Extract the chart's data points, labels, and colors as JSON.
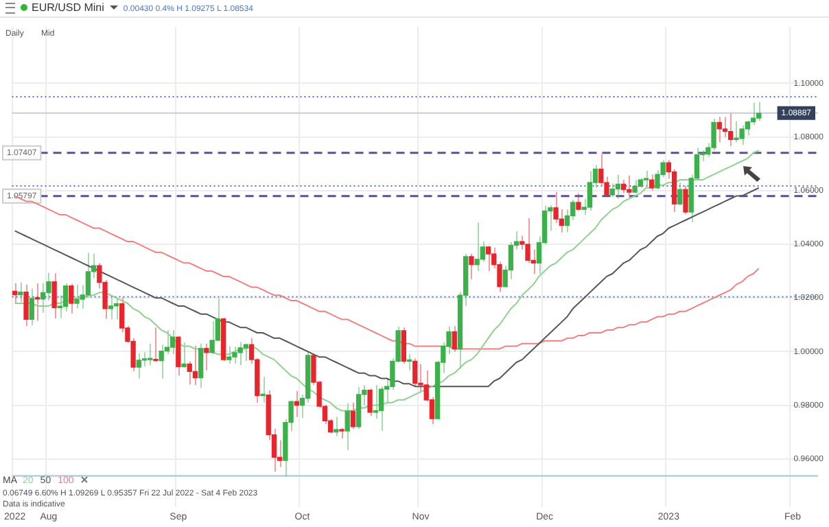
{
  "chart_data": {
    "type": "candlestick",
    "title": "EUR/USD Mini",
    "legend_title": "MA",
    "legend": "bottom left",
    "grid": true,
    "annotations": [
      "0.00430  0.4%  H 1.09275  L 1.08534",
      "Daily",
      "Mid",
      "0.06749  6.60%  H 1.09269  L 0.95357  Fri 22 Jul 2022 - Sat 4 Feb 2023",
      "Data is indicative"
    ],
    "ylim": [
      0.942,
      1.121
    ],
    "yticks": [
      {
        "value": 0.96,
        "label": "0.96000"
      },
      {
        "value": 0.98,
        "label": "0.98000"
      },
      {
        "value": 1.0,
        "label": "1.00000"
      },
      {
        "value": 1.02,
        "label": "1.02000"
      },
      {
        "value": 1.04,
        "label": "1.04000"
      },
      {
        "value": 1.06,
        "label": "1.06000"
      },
      {
        "value": 1.08,
        "label": "1.08000"
      },
      {
        "value": 1.1,
        "label": "1.10000"
      }
    ],
    "categories": [
      "2022",
      null,
      null,
      null,
      null,
      null,
      "Aug",
      null,
      null,
      null,
      null,
      null,
      null,
      null,
      null,
      null,
      null,
      null,
      null,
      null,
      null,
      null,
      null,
      null,
      null,
      null,
      null,
      null,
      null,
      "Sep",
      null,
      null,
      null,
      null,
      null,
      null,
      null,
      null,
      null,
      null,
      null,
      null,
      null,
      null,
      null,
      null,
      null,
      null,
      null,
      null,
      null,
      "Oct",
      null,
      null,
      null,
      null,
      null,
      null,
      null,
      null,
      null,
      null,
      null,
      null,
      null,
      null,
      null,
      null,
      null,
      null,
      null,
      null,
      "Nov",
      null,
      null,
      null,
      null,
      null,
      null,
      null,
      null,
      null,
      null,
      null,
      null,
      null,
      null,
      null,
      null,
      null,
      null,
      null,
      null,
      null,
      "Dec",
      null,
      null,
      null,
      null,
      null,
      null,
      null,
      null,
      null,
      null,
      null,
      null,
      null,
      null,
      null,
      null,
      null,
      null,
      null,
      null,
      null,
      "2023",
      null,
      null,
      null,
      null,
      null,
      null,
      null,
      null,
      null,
      null,
      null,
      null,
      null,
      null,
      null,
      null,
      null,
      null,
      null,
      null,
      null,
      "Feb",
      null,
      null,
      null,
      null
    ],
    "ohlc": [
      [
        1.0225,
        1.0255,
        1.018,
        1.0212
      ],
      [
        1.0212,
        1.0258,
        1.0185,
        1.0222
      ],
      [
        1.0222,
        1.025,
        1.0095,
        1.012
      ],
      [
        1.012,
        1.0235,
        1.0098,
        1.0198
      ],
      [
        1.0198,
        1.0254,
        1.0115,
        1.0196
      ],
      [
        1.0196,
        1.0255,
        1.0145,
        1.022
      ],
      [
        1.022,
        1.0294,
        1.019,
        1.026
      ],
      [
        1.026,
        1.0292,
        1.0123,
        1.0164
      ],
      [
        1.0164,
        1.021,
        1.0125,
        1.0168
      ],
      [
        1.0168,
        1.0254,
        1.015,
        1.0245
      ],
      [
        1.0245,
        1.0253,
        1.0142,
        1.018
      ],
      [
        1.018,
        1.025,
        1.016,
        1.0195
      ],
      [
        1.0195,
        1.0248,
        1.016,
        1.0211
      ],
      [
        1.0211,
        1.0368,
        1.0202,
        1.0298
      ],
      [
        1.0298,
        1.0364,
        1.0275,
        1.032
      ],
      [
        1.032,
        1.033,
        1.0235,
        1.0258
      ],
      [
        1.0258,
        1.0266,
        1.0122,
        1.016
      ],
      [
        1.016,
        1.02,
        1.012,
        1.017
      ],
      [
        1.017,
        1.02,
        1.012,
        1.0178
      ],
      [
        1.0178,
        1.0202,
        1.0072,
        1.0088
      ],
      [
        1.0088,
        1.0096,
        1.0032,
        1.0038
      ],
      [
        1.0038,
        1.005,
        0.9927,
        0.9942
      ],
      [
        0.9942,
        0.9994,
        0.99,
        0.9968
      ],
      [
        0.9968,
        0.9998,
        0.9945,
        0.997
      ],
      [
        0.997,
        1.003,
        0.995,
        0.997
      ],
      [
        0.997,
        1.009,
        0.9962,
        0.9966
      ],
      [
        0.9966,
        1.0026,
        0.99,
        1.0002
      ],
      [
        1.0002,
        1.008,
        0.999,
        1.0016
      ],
      [
        1.0016,
        1.008,
        0.999,
        1.0054
      ],
      [
        1.0054,
        1.0058,
        0.991,
        0.9944
      ],
      [
        0.9944,
        1.0034,
        0.994,
        0.9954
      ],
      [
        0.9954,
        0.9964,
        0.9877,
        0.9926
      ],
      [
        0.9926,
        1.0022,
        0.9875,
        0.9902
      ],
      [
        0.9902,
        1.003,
        0.9865,
        1.0012
      ],
      [
        1.0012,
        1.003,
        0.993,
        0.9996
      ],
      [
        0.9996,
        1.0112,
        0.999,
        1.0042
      ],
      [
        1.0042,
        1.0198,
        1.004,
        1.0122
      ],
      [
        1.0122,
        1.0126,
        0.9965,
        0.997
      ],
      [
        0.997,
        1.002,
        0.9955,
        0.998
      ],
      [
        0.998,
        1.0018,
        0.9955,
        0.9996
      ],
      [
        0.9996,
        1.0036,
        0.995,
        1.0014
      ],
      [
        1.0014,
        1.003,
        0.9965,
        1.0026
      ],
      [
        1.0026,
        1.005,
        0.9955,
        0.997
      ],
      [
        0.997,
        0.9976,
        0.981,
        0.9836
      ],
      [
        0.9836,
        0.9906,
        0.981,
        0.9838
      ],
      [
        0.9838,
        0.9855,
        0.967,
        0.969
      ],
      [
        0.969,
        0.9712,
        0.9553,
        0.9606
      ],
      [
        0.9606,
        0.967,
        0.957,
        0.9594
      ],
      [
        0.9594,
        0.9748,
        0.9536,
        0.9736
      ],
      [
        0.9736,
        0.9816,
        0.9703,
        0.9814
      ],
      [
        0.9814,
        0.9853,
        0.9756,
        0.98
      ],
      [
        0.98,
        0.984,
        0.9752,
        0.9826
      ],
      [
        0.9826,
        0.9999,
        0.981,
        0.9986
      ],
      [
        0.9986,
        0.9988,
        0.9876,
        0.9886
      ],
      [
        0.9886,
        0.989,
        0.979,
        0.9796
      ],
      [
        0.9796,
        0.9802,
        0.973,
        0.9742
      ],
      [
        0.9742,
        0.9748,
        0.9695,
        0.97
      ],
      [
        0.97,
        0.9757,
        0.9685,
        0.971
      ],
      [
        0.971,
        0.9716,
        0.9677,
        0.9704
      ],
      [
        0.9704,
        0.9808,
        0.9632,
        0.9778
      ],
      [
        0.9778,
        0.981,
        0.9712,
        0.972
      ],
      [
        0.972,
        0.9868,
        0.9712,
        0.984
      ],
      [
        0.984,
        0.9875,
        0.98,
        0.9856
      ],
      [
        0.9856,
        0.9862,
        0.976,
        0.9774
      ],
      [
        0.9774,
        0.9875,
        0.975,
        0.978
      ],
      [
        0.978,
        0.987,
        0.9705,
        0.986
      ],
      [
        0.986,
        0.99,
        0.981,
        0.987
      ],
      [
        0.987,
        0.9975,
        0.9858,
        0.9964
      ],
      [
        0.9964,
        1.0094,
        0.996,
        1.0078
      ],
      [
        1.0078,
        1.009,
        0.9955,
        0.9964
      ],
      [
        0.9964,
        0.999,
        0.993,
        0.9964
      ],
      [
        0.9964,
        0.9974,
        0.987,
        0.9882
      ],
      [
        0.9882,
        0.9953,
        0.9853,
        0.9876
      ],
      [
        0.9876,
        0.993,
        0.9814,
        0.982
      ],
      [
        0.982,
        0.983,
        0.973,
        0.975
      ],
      [
        0.975,
        0.9965,
        0.9745,
        0.996
      ],
      [
        0.996,
        1.0034,
        0.992,
        1.002
      ],
      [
        1.002,
        1.0094,
        0.999,
        1.0074
      ],
      [
        1.0074,
        1.0095,
        1.0,
        1.001
      ],
      [
        1.001,
        1.0222,
        0.9936,
        1.021
      ],
      [
        1.021,
        1.0365,
        1.017,
        1.0354
      ],
      [
        1.0354,
        1.0365,
        1.027,
        1.0324
      ],
      [
        1.0324,
        1.0481,
        1.03,
        1.0344
      ],
      [
        1.0344,
        1.041,
        1.0335,
        1.039
      ],
      [
        1.039,
        1.0394,
        1.03,
        1.0364
      ],
      [
        1.0364,
        1.0388,
        1.031,
        1.0324
      ],
      [
        1.0324,
        1.0335,
        1.0222,
        1.0242
      ],
      [
        1.0242,
        1.032,
        1.024,
        1.0304
      ],
      [
        1.0304,
        1.0408,
        1.027,
        1.0396
      ],
      [
        1.0396,
        1.0448,
        1.038,
        1.041
      ],
      [
        1.041,
        1.0432,
        1.038,
        1.04
      ],
      [
        1.04,
        1.0497,
        1.033,
        1.034
      ],
      [
        1.034,
        1.038,
        1.029,
        1.033
      ],
      [
        1.033,
        1.0429,
        1.029,
        1.0406
      ],
      [
        1.0406,
        1.0544,
        1.04,
        1.0524
      ],
      [
        1.0524,
        1.0545,
        1.045,
        1.0536
      ],
      [
        1.0536,
        1.0595,
        1.048,
        1.0494
      ],
      [
        1.0494,
        1.053,
        1.0444,
        1.047
      ],
      [
        1.047,
        1.053,
        1.0445,
        1.0506
      ],
      [
        1.0506,
        1.0566,
        1.049,
        1.0556
      ],
      [
        1.0556,
        1.059,
        1.0525,
        1.053
      ],
      [
        1.053,
        1.057,
        1.051,
        1.0538
      ],
      [
        1.0538,
        1.0673,
        1.0525,
        1.063
      ],
      [
        1.063,
        1.0695,
        1.061,
        1.068
      ],
      [
        1.068,
        1.0736,
        1.062,
        1.063
      ],
      [
        1.063,
        1.0652,
        1.058,
        1.0584
      ],
      [
        1.0584,
        1.0626,
        1.0575,
        1.0606
      ],
      [
        1.0606,
        1.0658,
        1.057,
        1.0624
      ],
      [
        1.0624,
        1.064,
        1.059,
        1.0604
      ],
      [
        1.0604,
        1.0656,
        1.0575,
        1.0594
      ],
      [
        1.0594,
        1.064,
        1.059,
        1.0616
      ],
      [
        1.0616,
        1.0646,
        1.061,
        1.064
      ],
      [
        1.064,
        1.0674,
        1.062,
        1.064
      ],
      [
        1.064,
        1.066,
        1.06,
        1.061
      ],
      [
        1.061,
        1.0676,
        1.0605,
        1.066
      ],
      [
        1.066,
        1.0714,
        1.065,
        1.0704
      ],
      [
        1.0704,
        1.0714,
        1.0645,
        1.067
      ],
      [
        1.067,
        1.068,
        1.052,
        1.055
      ],
      [
        1.055,
        1.063,
        1.0545,
        1.0604
      ],
      [
        1.0604,
        1.0618,
        1.0512,
        1.052
      ],
      [
        1.052,
        1.066,
        1.0483,
        1.0646
      ],
      [
        1.0646,
        1.076,
        1.064,
        1.0734
      ],
      [
        1.0734,
        1.075,
        1.071,
        1.0736
      ],
      [
        1.0736,
        1.0777,
        1.0725,
        1.076
      ],
      [
        1.076,
        1.0868,
        1.075,
        1.0854
      ],
      [
        1.0854,
        1.0875,
        1.078,
        1.083
      ],
      [
        1.083,
        1.0874,
        1.08,
        1.082
      ],
      [
        1.082,
        1.0887,
        1.0766,
        1.079
      ],
      [
        1.079,
        1.0858,
        1.078,
        1.0794
      ],
      [
        1.0794,
        1.0843,
        1.077,
        1.083
      ],
      [
        1.083,
        1.086,
        1.0805,
        1.0856
      ],
      [
        1.0856,
        1.0927,
        1.0845,
        1.087
      ],
      [
        1.087,
        1.093,
        1.086,
        1.0888
      ],
      null,
      null,
      null,
      null,
      null,
      null,
      null,
      null,
      null,
      null
    ],
    "series": [
      {
        "name": "20",
        "type": "line",
        "color": "#8fd18f",
        "values": [
          1.018,
          1.018,
          1.018,
          1.018,
          1.017,
          1.017,
          1.017,
          1.018,
          1.018,
          1.019,
          1.019,
          1.02,
          1.02,
          1.021,
          1.021,
          1.022,
          1.022,
          1.021,
          1.02,
          1.019,
          1.018,
          1.016,
          1.015,
          1.013,
          1.012,
          1.01,
          1.008,
          1.007,
          1.005,
          1.003,
          1.002,
          1.002,
          1.001,
          1.001,
          1.0,
          1.0,
          0.999,
          0.999,
          0.999,
          1.0,
          1.001,
          1.001,
          1.002,
          1.001,
          0.999,
          0.998,
          0.997,
          0.995,
          0.993,
          0.991,
          0.99,
          0.988,
          0.986,
          0.985,
          0.983,
          0.982,
          0.981,
          0.979,
          0.978,
          0.978,
          0.978,
          0.979,
          0.979,
          0.98,
          0.98,
          0.98,
          0.981,
          0.981,
          0.982,
          0.982,
          0.983,
          0.984,
          0.985,
          0.986,
          0.987,
          0.988,
          0.989,
          0.991,
          0.992,
          0.994,
          0.996,
          0.997,
          0.999,
          1.002,
          1.005,
          1.008,
          1.01,
          1.013,
          1.016,
          1.018,
          1.021,
          1.023,
          1.025,
          1.028,
          1.03,
          1.032,
          1.033,
          1.035,
          1.037,
          1.038,
          1.04,
          1.042,
          1.044,
          1.046,
          1.049,
          1.051,
          1.053,
          1.054,
          1.056,
          1.057,
          1.058,
          1.059,
          1.061,
          1.061,
          1.062,
          1.062,
          1.063,
          1.063,
          1.064,
          1.064,
          1.064,
          1.064,
          1.064,
          1.065,
          1.066,
          1.067,
          1.068,
          1.069,
          1.07,
          1.071,
          1.072,
          1.074,
          1.075,
          null,
          null,
          null,
          null,
          null,
          null,
          null,
          null,
          null,
          null
        ]
      },
      {
        "name": "50",
        "type": "line",
        "color": "#555555",
        "values": [
          1.045,
          1.044,
          1.043,
          1.042,
          1.041,
          1.04,
          1.039,
          1.038,
          1.037,
          1.036,
          1.035,
          1.034,
          1.033,
          1.032,
          1.031,
          1.03,
          1.029,
          1.028,
          1.027,
          1.026,
          1.025,
          1.024,
          1.023,
          1.022,
          1.021,
          1.02,
          1.02,
          1.019,
          1.018,
          1.017,
          1.017,
          1.016,
          1.015,
          1.014,
          1.014,
          1.013,
          1.012,
          1.011,
          1.011,
          1.01,
          1.009,
          1.009,
          1.008,
          1.007,
          1.007,
          1.006,
          1.005,
          1.005,
          1.004,
          1.003,
          1.002,
          1.001,
          1.0,
          0.999,
          0.998,
          0.998,
          0.997,
          0.996,
          0.995,
          0.994,
          0.993,
          0.992,
          0.992,
          0.991,
          0.991,
          0.99,
          0.99,
          0.989,
          0.989,
          0.988,
          0.988,
          0.987,
          0.987,
          0.987,
          0.987,
          0.987,
          0.987,
          0.987,
          0.987,
          0.987,
          0.987,
          0.987,
          0.987,
          0.987,
          0.987,
          0.989,
          0.99,
          0.992,
          0.994,
          0.996,
          0.997,
          0.999,
          1.001,
          1.003,
          1.005,
          1.007,
          1.009,
          1.011,
          1.013,
          1.016,
          1.018,
          1.02,
          1.022,
          1.024,
          1.026,
          1.028,
          1.029,
          1.031,
          1.033,
          1.034,
          1.036,
          1.038,
          1.039,
          1.041,
          1.043,
          1.044,
          1.046,
          1.047,
          1.048,
          1.049,
          1.05,
          1.051,
          1.052,
          1.053,
          1.054,
          1.055,
          1.056,
          1.057,
          1.058,
          1.058,
          1.059,
          1.06,
          1.061,
          null,
          null,
          null,
          null,
          null,
          null,
          null,
          null,
          null,
          null
        ]
      },
      {
        "name": "100",
        "type": "line",
        "color": "#f08080",
        "values": [
          1.058,
          1.057,
          1.056,
          1.056,
          1.055,
          1.054,
          1.053,
          1.052,
          1.051,
          1.051,
          1.05,
          1.049,
          1.048,
          1.047,
          1.046,
          1.046,
          1.045,
          1.044,
          1.043,
          1.042,
          1.041,
          1.041,
          1.04,
          1.039,
          1.038,
          1.037,
          1.037,
          1.036,
          1.035,
          1.034,
          1.033,
          1.033,
          1.032,
          1.031,
          1.03,
          1.03,
          1.029,
          1.028,
          1.028,
          1.027,
          1.026,
          1.025,
          1.024,
          1.024,
          1.023,
          1.022,
          1.021,
          1.021,
          1.02,
          1.019,
          1.019,
          1.018,
          1.017,
          1.016,
          1.015,
          1.015,
          1.014,
          1.013,
          1.012,
          1.012,
          1.011,
          1.01,
          1.009,
          1.008,
          1.007,
          1.006,
          1.005,
          1.004,
          1.004,
          1.003,
          1.003,
          1.002,
          1.002,
          1.002,
          1.002,
          1.002,
          1.002,
          1.002,
          1.001,
          1.001,
          1.001,
          1.001,
          1.001,
          1.001,
          1.001,
          1.001,
          1.001,
          1.002,
          1.002,
          1.002,
          1.003,
          1.003,
          1.003,
          1.003,
          1.004,
          1.004,
          1.004,
          1.004,
          1.005,
          1.005,
          1.006,
          1.006,
          1.007,
          1.007,
          1.007,
          1.008,
          1.008,
          1.009,
          1.009,
          1.01,
          1.01,
          1.011,
          1.011,
          1.012,
          1.013,
          1.013,
          1.014,
          1.014,
          1.015,
          1.015,
          1.016,
          1.017,
          1.018,
          1.019,
          1.02,
          1.021,
          1.022,
          1.023,
          1.025,
          1.026,
          1.028,
          1.029,
          1.031,
          null,
          null,
          null,
          null,
          null,
          null,
          null,
          null,
          null,
          null
        ]
      }
    ],
    "ref_lines": [
      {
        "axis": "y",
        "value": 1.07407,
        "label": "1.07407",
        "color": "#5b4f96",
        "line_style": "dashed"
      },
      {
        "axis": "y",
        "value": 1.05797,
        "label": "1.05797",
        "color": "#5b4f96",
        "line_style": "dashed"
      },
      {
        "axis": "y",
        "value": 1.08887,
        "label": "1.08887",
        "color": "#c8ccd6",
        "line_style": "solid"
      },
      {
        "axis": "y",
        "value": 1.095,
        "color": "#4a78c8",
        "line_style": "dotted"
      },
      {
        "axis": "y",
        "value": 1.0617,
        "color": "#4a78c8",
        "line_style": "dotted"
      },
      {
        "axis": "y",
        "value": 1.0204,
        "color": "#4a78c8",
        "line_style": "dotted"
      },
      {
        "axis": "y",
        "value": 0.9537,
        "color": "#9ec3e6",
        "line_style": "solid"
      }
    ]
  }
}
